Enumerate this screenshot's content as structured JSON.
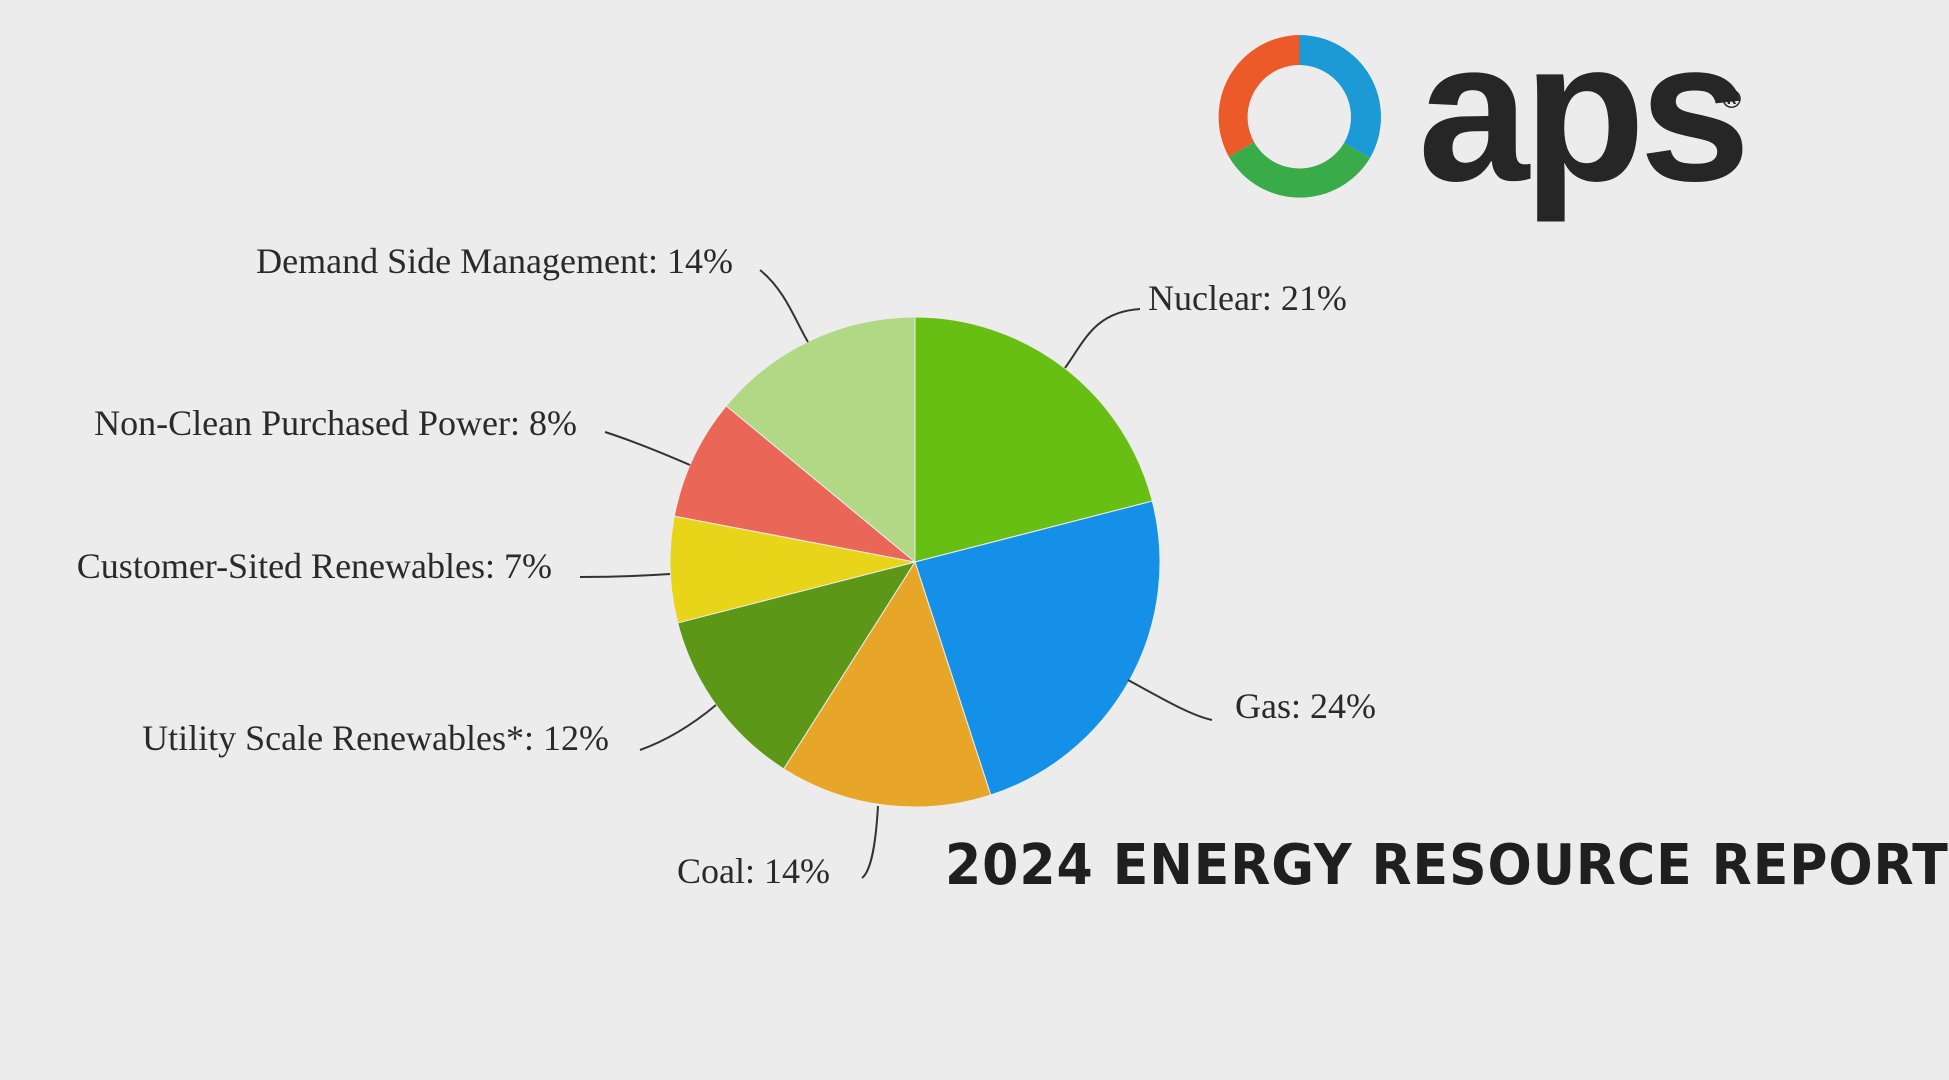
{
  "brand": {
    "name": "aps",
    "registered_mark": "®",
    "logo_colors": [
      "#e8452c",
      "#f29228",
      "#1b9ad6",
      "#2a6cb5",
      "#3aab49"
    ]
  },
  "headline": "2024 ENERGY RESOURCE REPORT",
  "chart_data": {
    "type": "pie",
    "slices": [
      {
        "label": "Nuclear",
        "value": 21,
        "text": "Nuclear: 21%",
        "color": "#68bf14"
      },
      {
        "label": "Gas",
        "value": 24,
        "text": "Gas: 24%",
        "color": "#1490e8"
      },
      {
        "label": "Coal",
        "value": 14,
        "text": "Coal: 14%",
        "color": "#e8a629"
      },
      {
        "label": "Utility Scale Renewables*",
        "value": 12,
        "text": "Utility Scale Renewables*: 12%",
        "color": "#5d9718"
      },
      {
        "label": "Customer-Sited Renewables",
        "value": 7,
        "text": "Customer-Sited Renewables: 7%",
        "color": "#e8d519"
      },
      {
        "label": "Non-Clean Purchased Power",
        "value": 8,
        "text": "Non-Clean Purchased Power: 8%",
        "color": "#ea6656"
      },
      {
        "label": "Demand Side Management",
        "value": 14,
        "text": "Demand Side Management: 14%",
        "color": "#b1d985"
      }
    ],
    "start_angle_deg": 0,
    "direction": "clockwise"
  }
}
